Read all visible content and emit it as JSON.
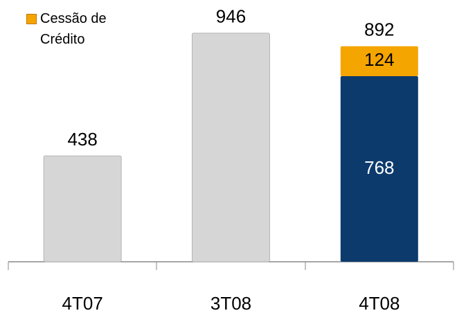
{
  "chart_data": {
    "type": "stacked_bar",
    "categories": [
      "4T07",
      "3T08",
      "4T08"
    ],
    "series": [
      {
        "colors": [
          "#d6d6d6",
          "#d6d6d6",
          "#0c3a6c"
        ],
        "values": [
          438,
          946,
          768
        ]
      },
      {
        "name": "Cessão de Crédito",
        "color": "#f5a500",
        "values": [
          null,
          null,
          124
        ]
      }
    ],
    "totals": [
      null,
      null,
      892
    ],
    "ylim": [
      0,
      1000
    ]
  }
}
